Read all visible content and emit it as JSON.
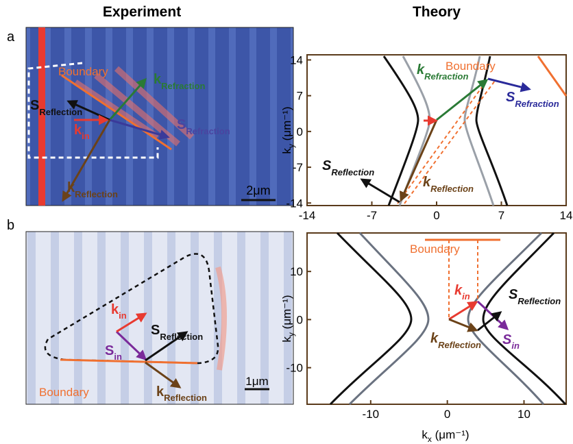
{
  "headers": {
    "experiment": "Experiment",
    "theory": "Theory"
  },
  "panels": [
    {
      "label": "a",
      "experiment": {
        "boundary": "Boundary",
        "k_refraction": {
          "symbol": "k",
          "subscript": "Refraction"
        },
        "s_reflection": {
          "symbol": "S",
          "subscript": "Reflection"
        },
        "k_in": {
          "symbol": "k",
          "subscript": "in"
        },
        "s_refraction": {
          "symbol": "S",
          "subscript": "Refraction"
        },
        "k_reflection": {
          "symbol": "k",
          "subscript": "Reflection"
        },
        "scale_bar": "2μm"
      },
      "theory": {
        "boundary": "Boundary",
        "k_refraction": {
          "symbol": "k",
          "subscript": "Refraction"
        },
        "s_refraction": {
          "symbol": "S",
          "subscript": "Refraction"
        },
        "s_reflection": {
          "symbol": "S",
          "subscript": "Reflection"
        },
        "k_reflection": {
          "symbol": "k",
          "subscript": "Reflection"
        },
        "xlim": [
          -14,
          14
        ],
        "ylim": [
          -14.5,
          15
        ],
        "xticks": [
          -14,
          -7,
          0,
          7,
          14
        ],
        "yticks": [
          14,
          7,
          0,
          -7,
          -14
        ],
        "ylabel": {
          "symbol": "k",
          "subscript": "y",
          "unit": " (μm⁻¹)"
        }
      }
    },
    {
      "label": "b",
      "experiment": {
        "k_in": {
          "symbol": "k",
          "subscript": "in"
        },
        "s_reflection": {
          "symbol": "S",
          "subscript": "Reflection"
        },
        "s_in": {
          "symbol": "S",
          "subscript": "in"
        },
        "boundary": "Boundary",
        "k_reflection": {
          "symbol": "k",
          "subscript": "Reflection"
        },
        "scale_bar": "1μm"
      },
      "theory": {
        "boundary": "Boundary",
        "k_in": {
          "symbol": "k",
          "subscript": "in"
        },
        "s_reflection": {
          "symbol": "S",
          "subscript": "Reflection"
        },
        "k_reflection": {
          "symbol": "k",
          "subscript": "Reflection"
        },
        "s_in": {
          "symbol": "S",
          "subscript": "in"
        },
        "xlim": [
          -18.3,
          15.5
        ],
        "ylim": [
          -17.6,
          18
        ],
        "xticks": [
          -10,
          0,
          10
        ],
        "yticks": [
          10,
          0,
          -10
        ],
        "xlabel": {
          "symbol": "k",
          "subscript": "x",
          "unit": " (μm⁻¹)"
        },
        "ylabel": {
          "symbol": "k",
          "subscript": "y",
          "unit": " (μm⁻¹)"
        }
      }
    }
  ]
}
